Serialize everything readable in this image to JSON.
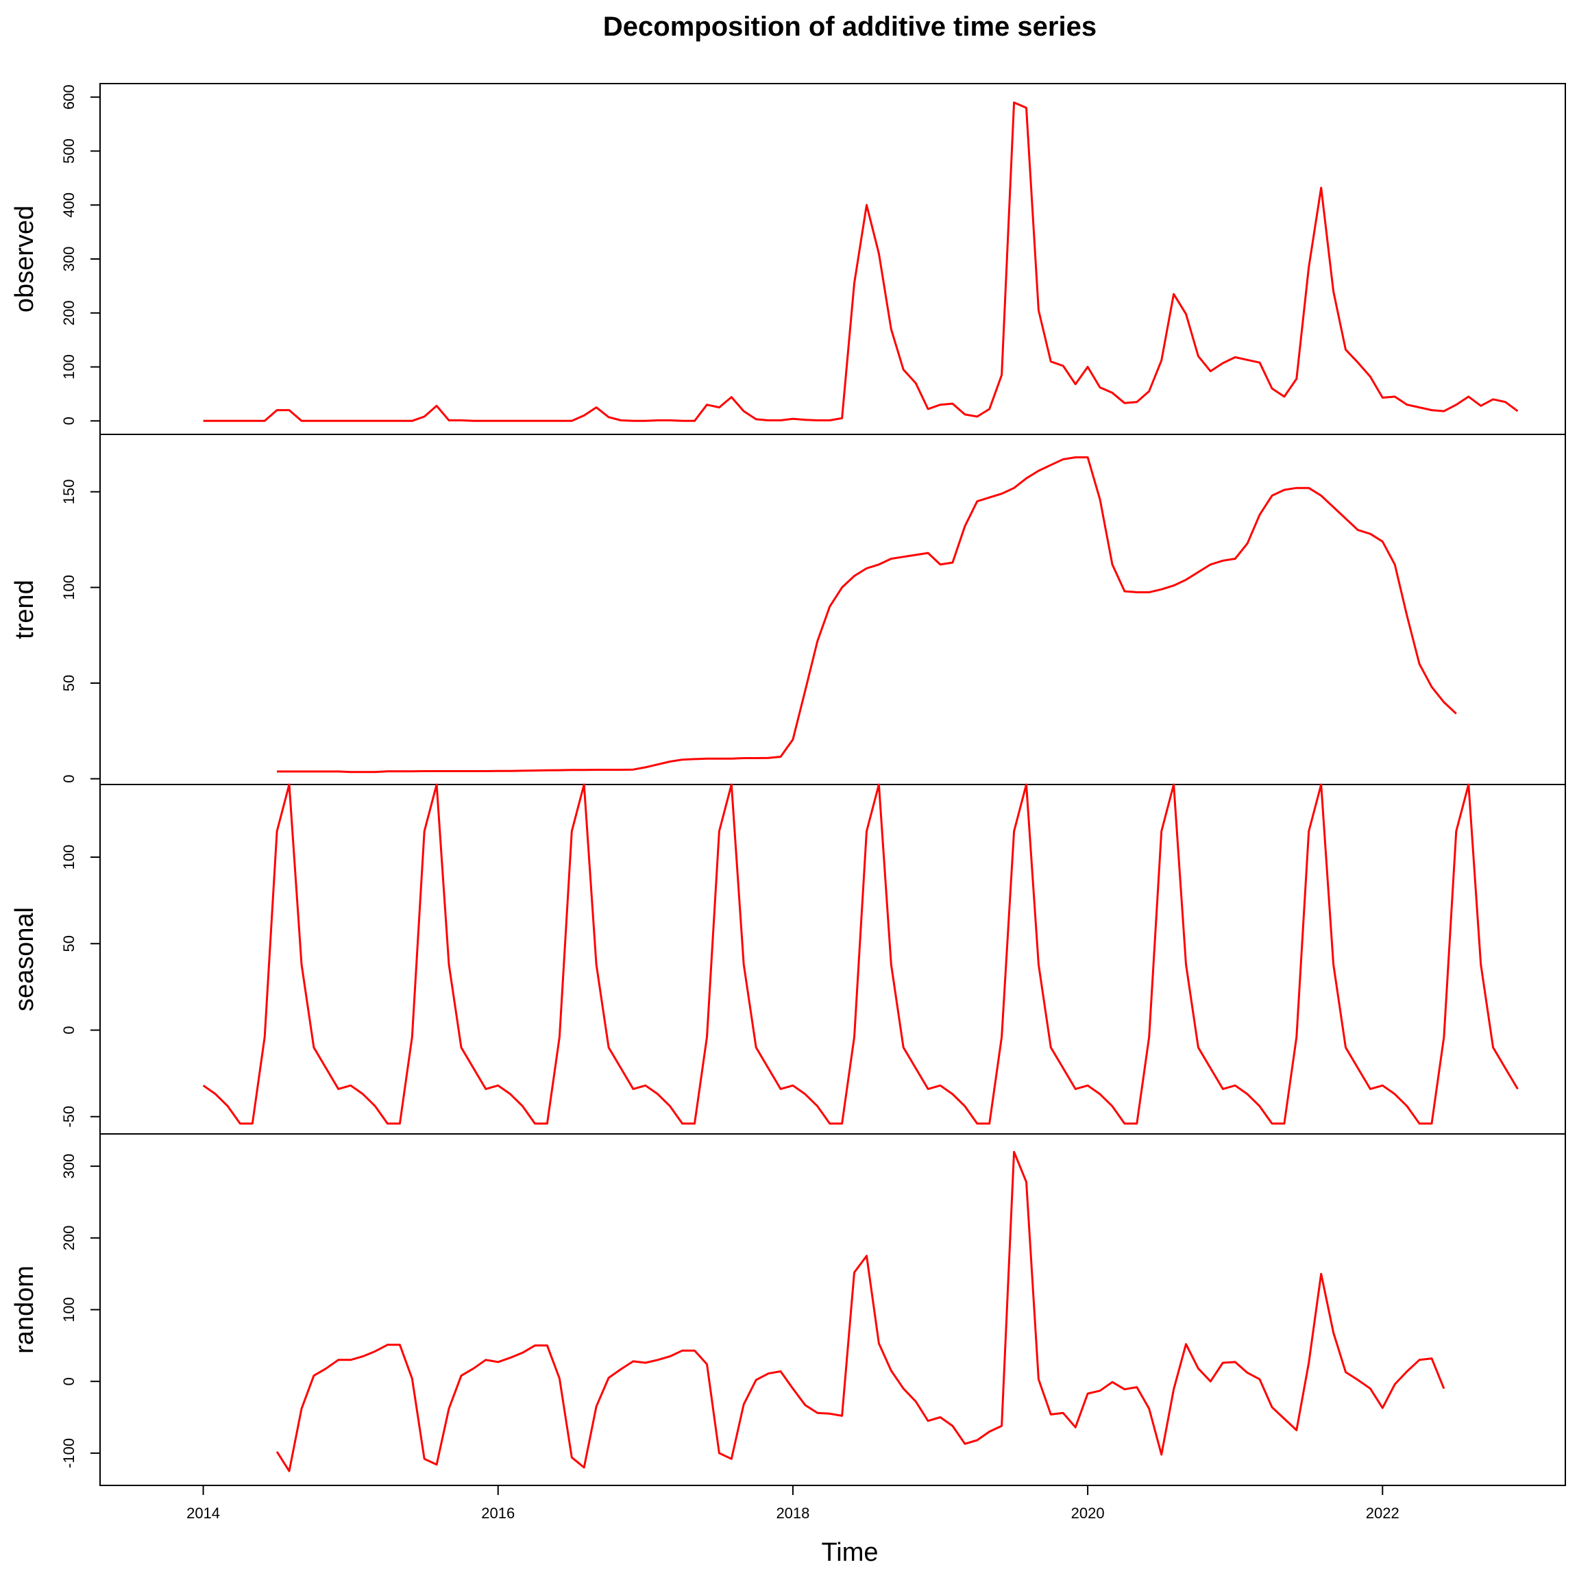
{
  "chart_data": {
    "type": "line",
    "title": "Decomposition of additive time series",
    "xlabel": "Time",
    "line_color": "#ff0000",
    "x_ticks": [
      2014,
      2016,
      2018,
      2020,
      2022
    ],
    "x_start": 2014,
    "frequency": 12,
    "panels": [
      {
        "name": "observed",
        "ylabel": "observed",
        "ylim": [
          -25,
          625
        ],
        "y_ticks": [
          0,
          100,
          200,
          300,
          400,
          500,
          600
        ],
        "values": [
          0,
          0,
          0,
          0,
          0,
          0,
          20,
          20,
          0,
          0,
          0,
          0,
          0,
          0,
          0,
          0,
          0,
          0,
          8,
          28,
          1,
          1,
          0,
          0,
          0,
          0,
          0,
          0,
          0,
          0,
          0,
          10,
          25,
          7,
          1,
          0,
          0,
          1,
          1,
          0,
          0,
          30,
          25,
          44,
          18,
          3,
          1,
          1,
          4,
          2,
          1,
          1,
          5,
          255,
          400,
          310,
          170,
          95,
          70,
          22,
          30,
          32,
          12,
          8,
          22,
          85,
          590,
          580,
          205,
          110,
          102,
          68,
          100,
          62,
          52,
          33,
          35,
          55,
          112,
          235,
          198,
          120,
          92,
          107,
          118,
          113,
          108,
          60,
          45,
          78,
          285,
          432,
          240,
          132,
          108,
          82,
          43,
          45,
          30,
          25,
          20,
          18,
          30,
          45,
          28,
          40,
          35,
          18
        ]
      },
      {
        "name": "trend",
        "ylabel": "trend",
        "ylim": [
          -3,
          180
        ],
        "y_ticks": [
          0,
          50,
          100,
          150
        ],
        "values": [
          null,
          null,
          null,
          null,
          null,
          null,
          3.8,
          3.8,
          3.8,
          3.8,
          3.8,
          3.8,
          3.5,
          3.5,
          3.5,
          3.9,
          3.9,
          3.9,
          4.0,
          4.0,
          4.0,
          4.0,
          4.0,
          4.0,
          4.1,
          4.1,
          4.2,
          4.3,
          4.4,
          4.5,
          4.6,
          4.6,
          4.7,
          4.7,
          4.7,
          4.8,
          6.0,
          7.5,
          9.0,
          10.0,
          10.3,
          10.5,
          10.5,
          10.5,
          10.8,
          10.8,
          10.9,
          11.5,
          20.5,
          46,
          72,
          90,
          100,
          106,
          110,
          112,
          115,
          116,
          117,
          118,
          112,
          113,
          132,
          145,
          147,
          149,
          152,
          157,
          161,
          164,
          167,
          168,
          168,
          146,
          112,
          98,
          97.5,
          97.5,
          99,
          101,
          104,
          108,
          112,
          114,
          115,
          123,
          138,
          148,
          151,
          152,
          152,
          148,
          142,
          136,
          130,
          128,
          124,
          112,
          85,
          60,
          48,
          40,
          34
        ]
      },
      {
        "name": "seasonal",
        "ylabel": "seasonal",
        "ylim": [
          -60,
          142
        ],
        "y_ticks": [
          -50,
          0,
          50,
          100
        ],
        "values": [
          -32,
          -37,
          -44,
          -54,
          -54,
          -4,
          115,
          142,
          38,
          -10,
          -22,
          -34,
          -32,
          -37,
          -44,
          -54,
          -54,
          -4,
          115,
          142,
          38,
          -10,
          -22,
          -34,
          -32,
          -37,
          -44,
          -54,
          -54,
          -4,
          115,
          142,
          38,
          -10,
          -22,
          -34,
          -32,
          -37,
          -44,
          -54,
          -54,
          -4,
          115,
          142,
          38,
          -10,
          -22,
          -34,
          -32,
          -37,
          -44,
          -54,
          -54,
          -4,
          115,
          142,
          38,
          -10,
          -22,
          -34,
          -32,
          -37,
          -44,
          -54,
          -54,
          -4,
          115,
          142,
          38,
          -10,
          -22,
          -34,
          -32,
          -37,
          -44,
          -54,
          -54,
          -4,
          115,
          142,
          38,
          -10,
          -22,
          -34,
          -32,
          -37,
          -44,
          -54,
          -54,
          -4,
          115,
          142,
          38,
          -10,
          -22,
          -34,
          -32,
          -37,
          -44,
          -54,
          -54,
          -4,
          115,
          142,
          38,
          -10,
          -22,
          -34
        ]
      },
      {
        "name": "random",
        "ylabel": "random",
        "ylim": [
          -145,
          345
        ],
        "y_ticks": [
          -100,
          0,
          100,
          200,
          300
        ],
        "values": [
          null,
          null,
          null,
          null,
          null,
          null,
          -98,
          -125,
          -38,
          8,
          18,
          30,
          30,
          35,
          42,
          51,
          51,
          4,
          -108,
          -116,
          -38,
          8,
          18,
          30,
          27,
          33,
          40,
          50,
          50,
          4,
          -106,
          -120,
          -35,
          5,
          17,
          28,
          26,
          30,
          35,
          43,
          43,
          24,
          -100,
          -108,
          -32,
          2,
          11,
          14,
          -10,
          -33,
          -44,
          -45,
          -48,
          152,
          175,
          53,
          15,
          -10,
          -28,
          -55,
          -50,
          -62,
          -87,
          -82,
          -70,
          -62,
          320,
          278,
          3,
          -46,
          -44,
          -64,
          -17,
          -13,
          -1,
          -11,
          -8,
          -38,
          -102,
          -11,
          52,
          18,
          0,
          26,
          27,
          12,
          3,
          -36,
          -52,
          -68,
          26,
          150,
          68,
          13,
          2,
          -10,
          -37,
          -4,
          14,
          30,
          32,
          -10
        ]
      }
    ]
  }
}
